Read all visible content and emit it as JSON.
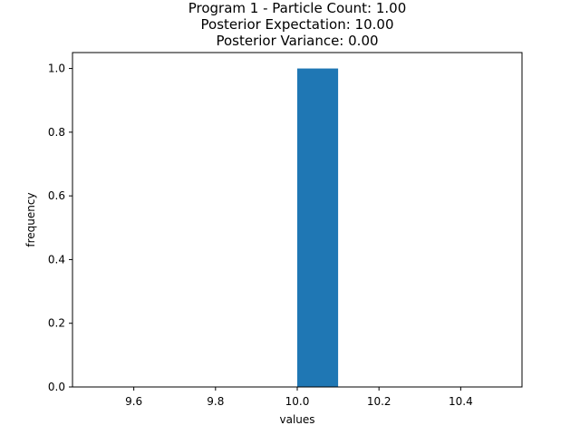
{
  "chart_data": {
    "type": "bar",
    "title_lines": [
      "Program 1 - Particle Count: 1.00",
      "Posterior Expectation: 10.00",
      "Posterior Variance: 0.00"
    ],
    "xlabel": "values",
    "ylabel": "frequency",
    "xlim": [
      9.45,
      10.55
    ],
    "ylim": [
      0.0,
      1.05
    ],
    "x_ticks": [
      9.6,
      9.8,
      10.0,
      10.2,
      10.4
    ],
    "x_tick_labels": [
      "9.6",
      "9.8",
      "10.0",
      "10.2",
      "10.4"
    ],
    "y_ticks": [
      0.0,
      0.2,
      0.4,
      0.6,
      0.8,
      1.0
    ],
    "y_tick_labels": [
      "0.0",
      "0.2",
      "0.4",
      "0.6",
      "0.8",
      "1.0"
    ],
    "bars": [
      {
        "x_start": 10.0,
        "x_end": 10.1,
        "value": 1.0
      }
    ],
    "bar_color": "#1f77b4",
    "grid": false,
    "legend": "none"
  }
}
